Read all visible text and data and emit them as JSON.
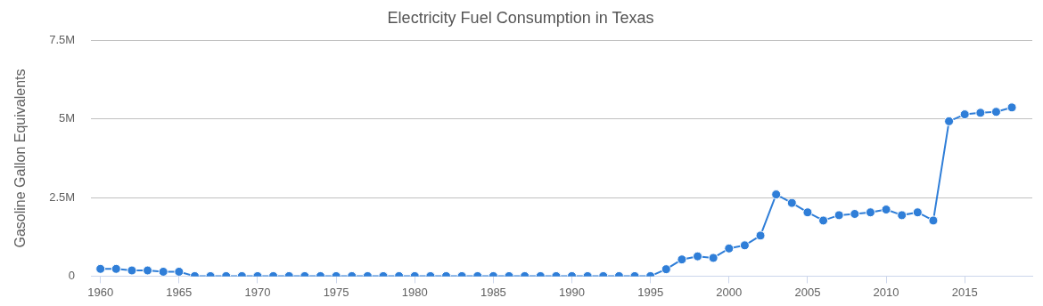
{
  "chart_data": {
    "type": "line",
    "title": "Electricity Fuel Consumption in Texas",
    "ylabel": "Gasoline Gallon Equivalents",
    "x": [
      1960,
      1961,
      1962,
      1963,
      1964,
      1965,
      1966,
      1967,
      1968,
      1969,
      1970,
      1971,
      1972,
      1973,
      1974,
      1975,
      1976,
      1977,
      1978,
      1979,
      1980,
      1981,
      1982,
      1983,
      1984,
      1985,
      1986,
      1987,
      1988,
      1989,
      1990,
      1991,
      1992,
      1993,
      1994,
      1995,
      1996,
      1997,
      1998,
      1999,
      2000,
      2001,
      2002,
      2003,
      2004,
      2005,
      2006,
      2007,
      2008,
      2009,
      2010,
      2011,
      2012,
      2013,
      2014,
      2015,
      2016,
      2017,
      2018
    ],
    "series": [
      {
        "color": "#2f7ed8",
        "values": [
          230000,
          230000,
          180000,
          180000,
          140000,
          140000,
          0,
          0,
          0,
          0,
          0,
          0,
          0,
          0,
          0,
          0,
          0,
          0,
          0,
          0,
          0,
          0,
          0,
          0,
          0,
          0,
          0,
          0,
          0,
          0,
          0,
          0,
          0,
          0,
          0,
          0,
          220000,
          530000,
          630000,
          580000,
          880000,
          980000,
          1290000,
          2600000,
          2330000,
          2030000,
          1770000,
          1940000,
          1980000,
          2030000,
          2120000,
          1940000,
          2030000,
          1770000,
          4930000,
          5150000,
          5200000,
          5230000,
          5370000
        ]
      }
    ],
    "xlim": [
      1959.4,
      2019.3
    ],
    "xticks": [
      1960,
      1965,
      1970,
      1975,
      1980,
      1985,
      1990,
      1995,
      2000,
      2005,
      2010,
      2015
    ],
    "ylim": [
      0,
      7500000
    ],
    "yticks": [
      {
        "value": 0,
        "label": "0"
      },
      {
        "value": 2500000,
        "label": "2.5M"
      },
      {
        "value": 5000000,
        "label": "5M"
      },
      {
        "value": 7500000,
        "label": "7.5M"
      }
    ],
    "grid": "y",
    "legend": false,
    "marker": "circle",
    "line_style": "solid"
  }
}
